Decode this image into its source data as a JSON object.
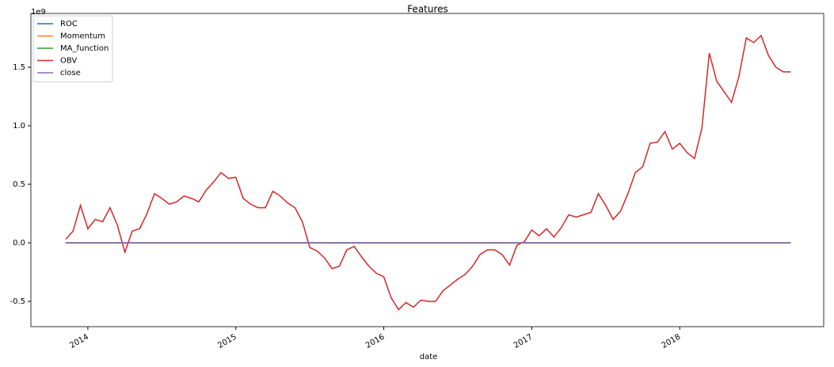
{
  "chart_data": {
    "type": "line",
    "title": "Features",
    "xlabel": "date",
    "offset_label": "1e9",
    "x": [
      2013.85,
      2013.9,
      2013.95,
      2014.0,
      2014.05,
      2014.1,
      2014.15,
      2014.2,
      2014.25,
      2014.3,
      2014.35,
      2014.4,
      2014.45,
      2014.5,
      2014.55,
      2014.6,
      2014.65,
      2014.7,
      2014.75,
      2014.8,
      2014.85,
      2014.9,
      2014.95,
      2015.0,
      2015.05,
      2015.1,
      2015.15,
      2015.2,
      2015.25,
      2015.3,
      2015.35,
      2015.4,
      2015.45,
      2015.5,
      2015.55,
      2015.6,
      2015.65,
      2015.7,
      2015.75,
      2015.8,
      2015.85,
      2015.9,
      2015.95,
      2016.0,
      2016.05,
      2016.1,
      2016.15,
      2016.2,
      2016.25,
      2016.3,
      2016.35,
      2016.4,
      2016.45,
      2016.5,
      2016.55,
      2016.6,
      2016.65,
      2016.7,
      2016.75,
      2016.8,
      2016.85,
      2016.9,
      2016.95,
      2017.0,
      2017.05,
      2017.1,
      2017.15,
      2017.2,
      2017.25,
      2017.3,
      2017.35,
      2017.4,
      2017.45,
      2017.5,
      2017.55,
      2017.6,
      2017.65,
      2017.7,
      2017.75,
      2017.8,
      2017.85,
      2017.9,
      2017.95,
      2018.0,
      2018.05,
      2018.1,
      2018.15,
      2018.2,
      2018.25,
      2018.3,
      2018.35,
      2018.4,
      2018.45,
      2018.5,
      2018.55,
      2018.6,
      2018.65,
      2018.7,
      2018.75
    ],
    "series": [
      {
        "name": "ROC",
        "color": "#1f77b4",
        "values": [
          0,
          0,
          0,
          0,
          0,
          0,
          0,
          0,
          0,
          0,
          0,
          0,
          0,
          0,
          0,
          0,
          0,
          0,
          0,
          0,
          0,
          0,
          0,
          0,
          0,
          0,
          0,
          0,
          0,
          0,
          0,
          0,
          0,
          0,
          0,
          0,
          0,
          0,
          0,
          0,
          0,
          0,
          0,
          0,
          0,
          0,
          0,
          0,
          0,
          0,
          0,
          0,
          0,
          0,
          0,
          0,
          0,
          0,
          0,
          0,
          0,
          0,
          0,
          0,
          0,
          0,
          0,
          0,
          0,
          0,
          0,
          0,
          0,
          0,
          0,
          0,
          0,
          0,
          0,
          0,
          0,
          0,
          0,
          0,
          0,
          0,
          0,
          0,
          0,
          0,
          0,
          0,
          0,
          0,
          0,
          0,
          0,
          0,
          0
        ]
      },
      {
        "name": "Momentum",
        "color": "#ff7f0e",
        "values": [
          0,
          0,
          0,
          0,
          0,
          0,
          0,
          0,
          0,
          0,
          0,
          0,
          0,
          0,
          0,
          0,
          0,
          0,
          0,
          0,
          0,
          0,
          0,
          0,
          0,
          0,
          0,
          0,
          0,
          0,
          0,
          0,
          0,
          0,
          0,
          0,
          0,
          0,
          0,
          0,
          0,
          0,
          0,
          0,
          0,
          0,
          0,
          0,
          0,
          0,
          0,
          0,
          0,
          0,
          0,
          0,
          0,
          0,
          0,
          0,
          0,
          0,
          0,
          0,
          0,
          0,
          0,
          0,
          0,
          0,
          0,
          0,
          0,
          0,
          0,
          0,
          0,
          0,
          0,
          0,
          0,
          0,
          0,
          0,
          0,
          0,
          0,
          0,
          0,
          0,
          0,
          0,
          0,
          0,
          0,
          0,
          0,
          0,
          0
        ]
      },
      {
        "name": "MA_function",
        "color": "#2ca02c",
        "values": [
          0,
          0,
          0,
          0,
          0,
          0,
          0,
          0,
          0,
          0,
          0,
          0,
          0,
          0,
          0,
          0,
          0,
          0,
          0,
          0,
          0,
          0,
          0,
          0,
          0,
          0,
          0,
          0,
          0,
          0,
          0,
          0,
          0,
          0,
          0,
          0,
          0,
          0,
          0,
          0,
          0,
          0,
          0,
          0,
          0,
          0,
          0,
          0,
          0,
          0,
          0,
          0,
          0,
          0,
          0,
          0,
          0,
          0,
          0,
          0,
          0,
          0,
          0,
          0,
          0,
          0,
          0,
          0,
          0,
          0,
          0,
          0,
          0,
          0,
          0,
          0,
          0,
          0,
          0,
          0,
          0,
          0,
          0,
          0,
          0,
          0,
          0,
          0,
          0,
          0,
          0,
          0,
          0,
          0,
          0,
          0,
          0,
          0,
          0
        ]
      },
      {
        "name": "OBV",
        "color": "#d62728",
        "values": [
          0.03,
          0.1,
          0.32,
          0.12,
          0.2,
          0.18,
          0.3,
          0.15,
          -0.08,
          0.1,
          0.12,
          0.25,
          0.42,
          0.38,
          0.33,
          0.35,
          0.4,
          0.38,
          0.35,
          0.45,
          0.52,
          0.6,
          0.55,
          0.56,
          0.38,
          0.33,
          0.3,
          0.3,
          0.44,
          0.4,
          0.34,
          0.3,
          0.18,
          -0.04,
          -0.07,
          -0.13,
          -0.22,
          -0.2,
          -0.06,
          -0.03,
          -0.12,
          -0.2,
          -0.26,
          -0.29,
          -0.47,
          -0.57,
          -0.51,
          -0.55,
          -0.49,
          -0.5,
          -0.5,
          -0.41,
          -0.36,
          -0.31,
          -0.27,
          -0.2,
          -0.1,
          -0.06,
          -0.06,
          -0.1,
          -0.19,
          -0.02,
          0.01,
          0.11,
          0.06,
          0.12,
          0.05,
          0.13,
          0.24,
          0.22,
          0.24,
          0.26,
          0.42,
          0.32,
          0.2,
          0.27,
          0.42,
          0.6,
          0.65,
          0.85,
          0.86,
          0.95,
          0.8,
          0.85,
          0.77,
          0.72,
          0.98,
          1.62,
          1.38,
          1.29,
          1.2,
          1.42,
          1.75,
          1.71,
          1.77,
          1.6,
          1.5,
          1.46,
          1.46
        ]
      },
      {
        "name": "close",
        "color": "#9467bd",
        "values": [
          0,
          0,
          0,
          0,
          0,
          0,
          0,
          0,
          0,
          0,
          0,
          0,
          0,
          0,
          0,
          0,
          0,
          0,
          0,
          0,
          0,
          0,
          0,
          0,
          0,
          0,
          0,
          0,
          0,
          0,
          0,
          0,
          0,
          0,
          0,
          0,
          0,
          0,
          0,
          0,
          0,
          0,
          0,
          0,
          0,
          0,
          0,
          0,
          0,
          0,
          0,
          0,
          0,
          0,
          0,
          0,
          0,
          0,
          0,
          0,
          0,
          0,
          0,
          0,
          0,
          0,
          0,
          0,
          0,
          0,
          0,
          0,
          0,
          0,
          0,
          0,
          0,
          0,
          0,
          0,
          0,
          0,
          0,
          0,
          0,
          0,
          0,
          0,
          0,
          0,
          0,
          0,
          0,
          0,
          0,
          0,
          0,
          0,
          0
        ]
      }
    ],
    "xlim": [
      2013.615,
      2018.973
    ],
    "xticks": [
      2014,
      2015,
      2016,
      2017,
      2018
    ],
    "ylim": [
      -0.716,
      1.959
    ],
    "yticks": [
      -0.5,
      {
        "value": 0,
        "label": "0.0"
      },
      0.5,
      {
        "value": 1,
        "label": "1.0"
      },
      1.5
    ],
    "grid": false,
    "legend": "upper left"
  }
}
